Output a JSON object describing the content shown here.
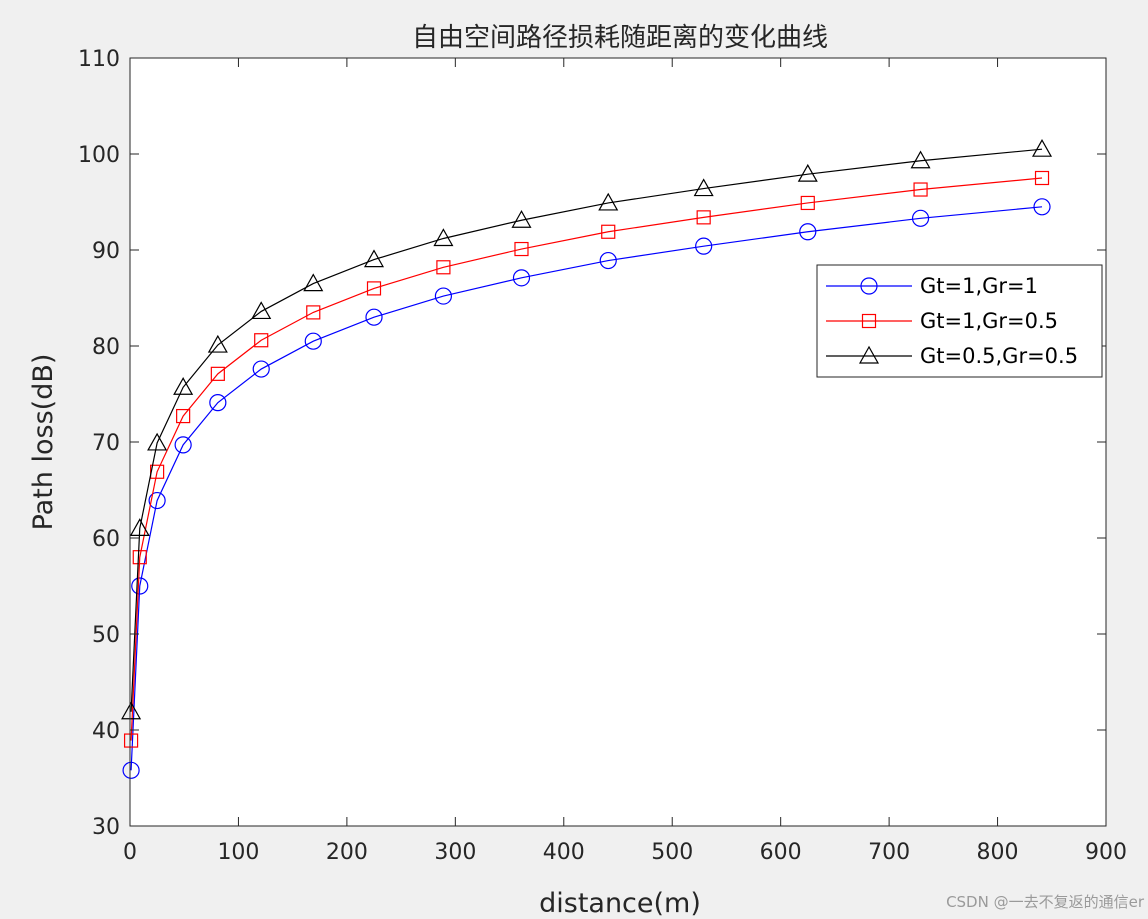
{
  "chart_data": {
    "type": "line",
    "title": "自由空间路径损耗随距离的变化曲线",
    "xlabel": "distance(m)",
    "ylabel": "Path loss(dB)",
    "xlim": [
      0,
      900
    ],
    "ylim": [
      30,
      110
    ],
    "x_ticks": [
      0,
      100,
      200,
      300,
      400,
      500,
      600,
      700,
      800,
      900
    ],
    "y_ticks": [
      30,
      40,
      50,
      60,
      70,
      80,
      90,
      100,
      110
    ],
    "grid": false,
    "legend_position": "right",
    "x": [
      1,
      9,
      25,
      49,
      81,
      121,
      169,
      225,
      289,
      361,
      441,
      529,
      625,
      729,
      841
    ],
    "series": [
      {
        "name": "Gt=1,Gr=1",
        "color": "#0000ff",
        "marker": "circle",
        "values": [
          35.8,
          55.0,
          63.9,
          69.7,
          74.1,
          77.6,
          80.5,
          83.0,
          85.2,
          87.1,
          88.9,
          90.4,
          91.9,
          93.3,
          94.5
        ]
      },
      {
        "name": "Gt=1,Gr=0.5",
        "color": "#ff0000",
        "marker": "square",
        "values": [
          38.9,
          58.0,
          66.9,
          72.7,
          77.1,
          80.6,
          83.5,
          86.0,
          88.2,
          90.1,
          91.9,
          93.4,
          94.9,
          96.3,
          97.5
        ]
      },
      {
        "name": "Gt=0.5,Gr=0.5",
        "color": "#000000",
        "marker": "triangle",
        "values": [
          41.9,
          61.0,
          69.9,
          75.7,
          80.1,
          83.6,
          86.5,
          89.0,
          91.2,
          93.1,
          94.9,
          96.4,
          97.9,
          99.3,
          100.5
        ]
      }
    ]
  },
  "watermark": "CSDN @一去不复返的通信er"
}
